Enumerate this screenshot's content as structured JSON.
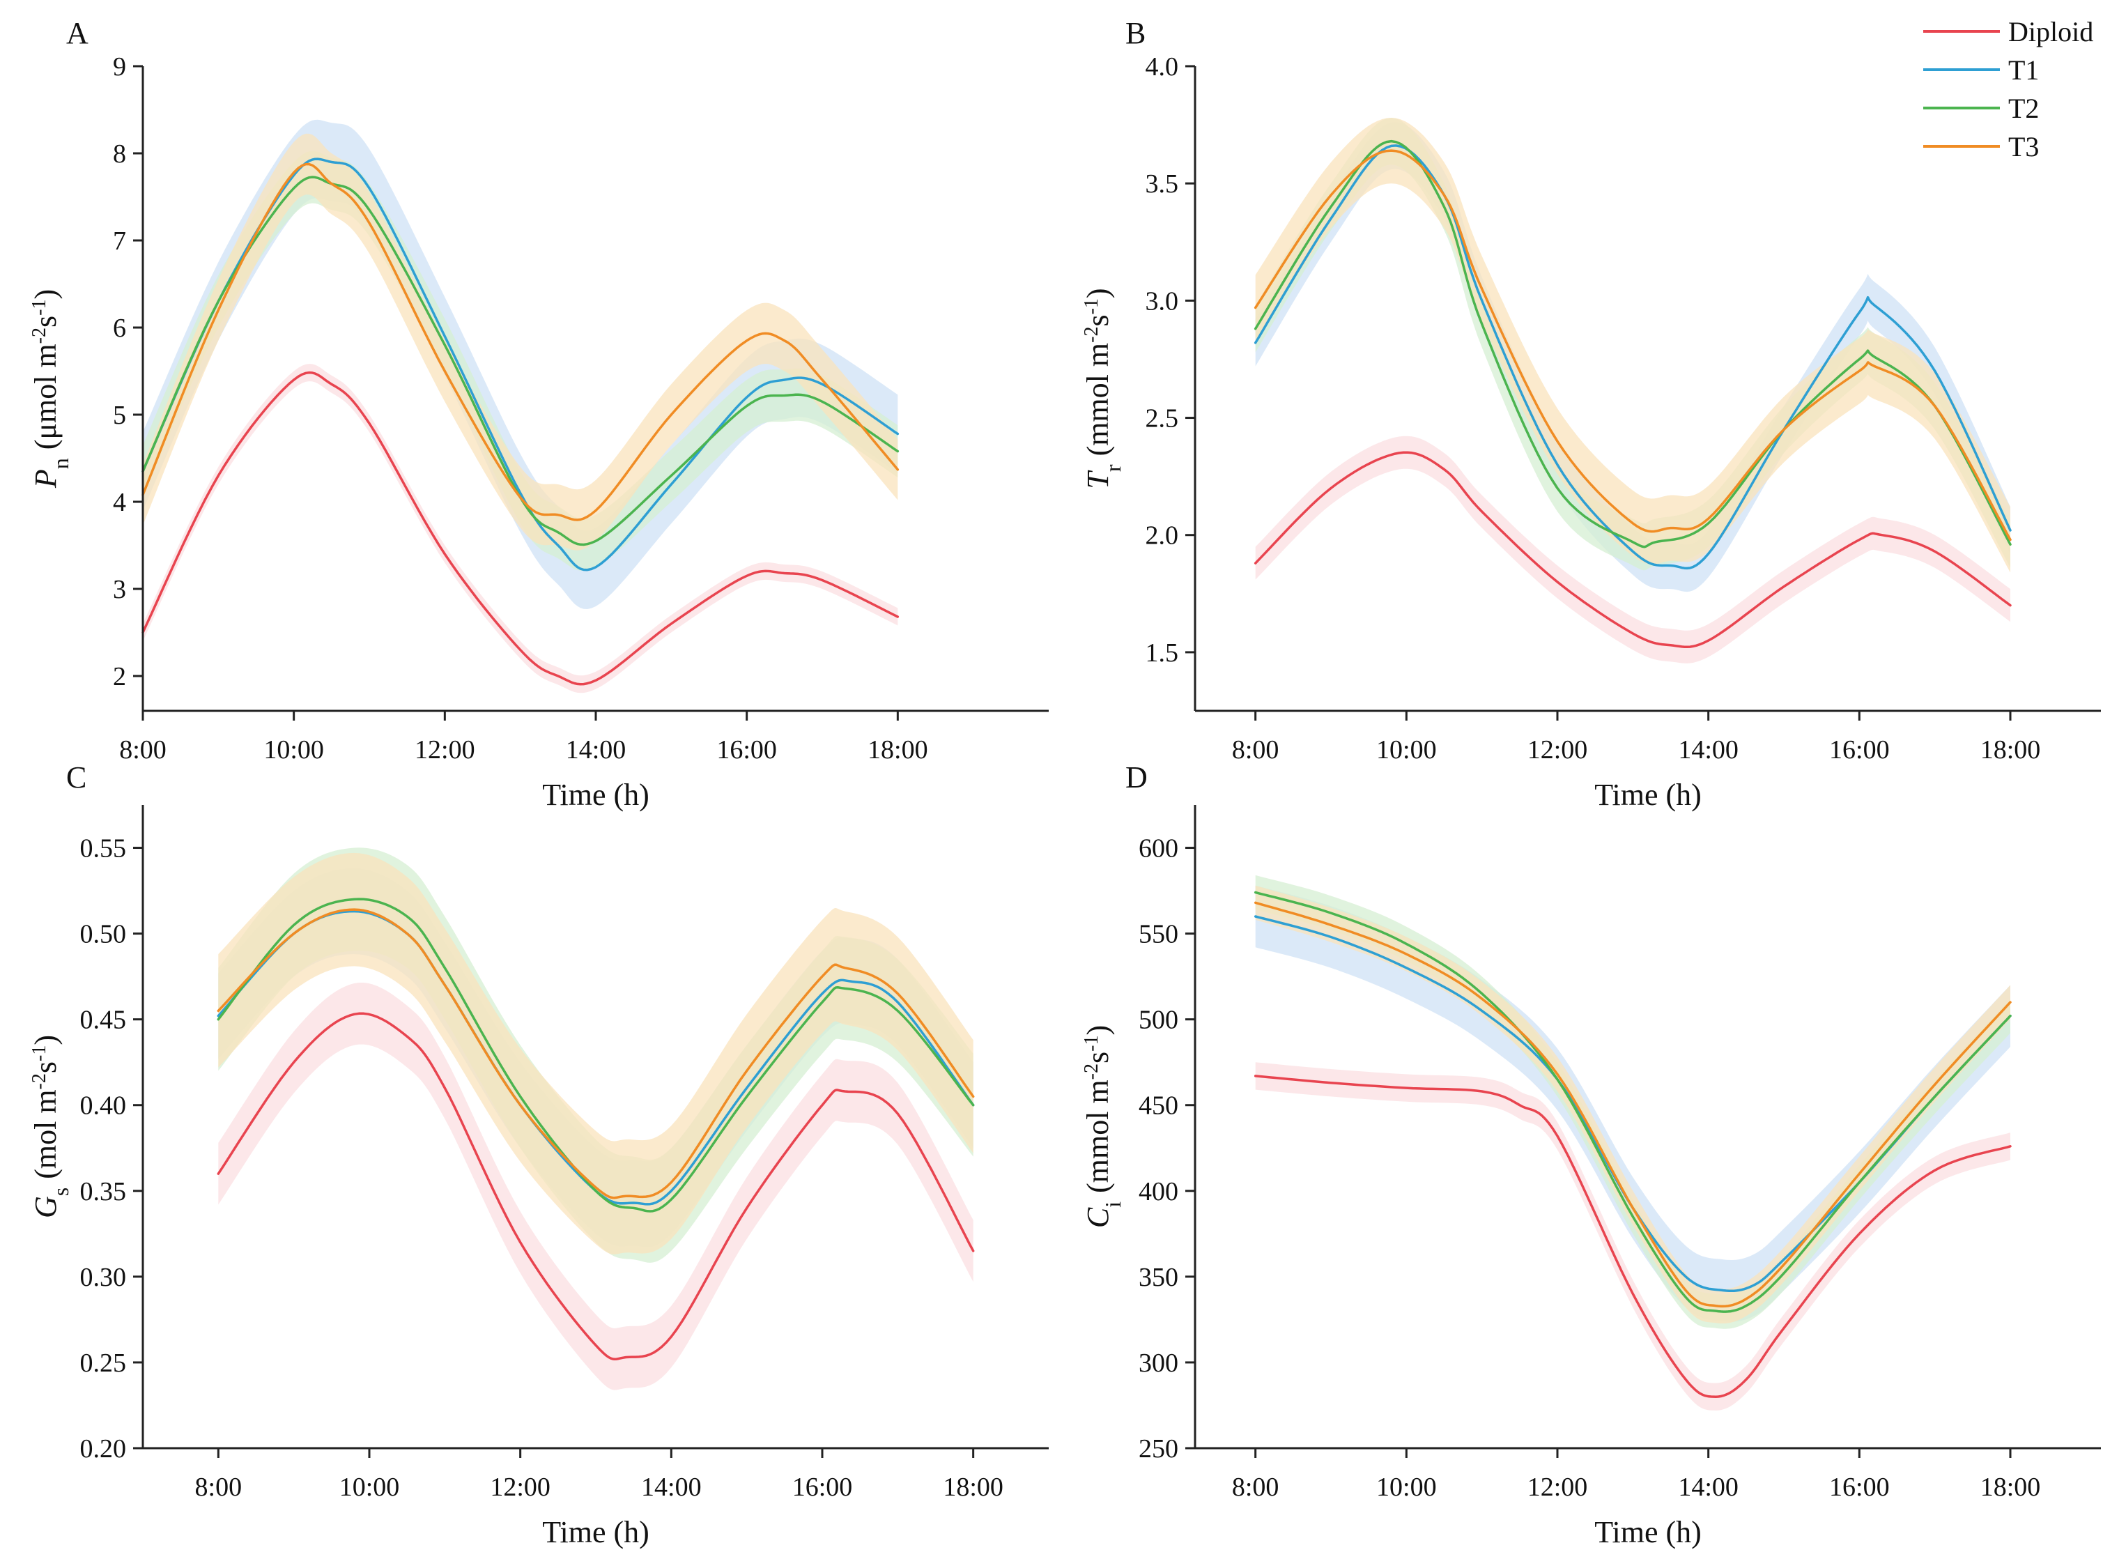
{
  "figure": {
    "legend": [
      {
        "name": "Diploid",
        "color": "#e8444f"
      },
      {
        "name": "T1",
        "color": "#2e9fd3"
      },
      {
        "name": "T2",
        "color": "#4bb44f"
      },
      {
        "name": "T3",
        "color": "#f08c24"
      }
    ],
    "band_colors": {
      "Diploid": "#fbdfe2",
      "T1": "#cfe2f5",
      "T2": "#d5efd3",
      "T3": "#f9e3bc"
    }
  },
  "chart_data": [
    {
      "type": "line",
      "panel": "A",
      "title": "",
      "xlabel": "Time (h)",
      "ylabel": {
        "symbol": "P",
        "sub": "n",
        "unit_prefix": "(μmol m",
        "exp1": "-2",
        "mid": "s",
        "exp2": "-1",
        "close": ")"
      },
      "xlim": [
        8,
        20
      ],
      "ylim": [
        1.6,
        9
      ],
      "x_ticks": [
        8,
        10,
        12,
        14,
        16,
        18
      ],
      "x_tick_labels": [
        "8:00",
        "10:00",
        "12:00",
        "14:00",
        "16:00",
        "18:00"
      ],
      "y_ticks": [
        2,
        3,
        4,
        5,
        6,
        7,
        8,
        9
      ],
      "y_tick_labels": [
        "2",
        "3",
        "4",
        "5",
        "6",
        "7",
        "8",
        "9"
      ],
      "series": [
        {
          "name": "Diploid",
          "x": [
            8,
            9,
            10,
            10.5,
            11,
            12,
            13,
            13.5,
            14,
            15,
            16,
            16.5,
            17,
            18
          ],
          "y": [
            2.5,
            4.3,
            5.4,
            5.35,
            4.9,
            3.4,
            2.3,
            2.0,
            1.95,
            2.6,
            3.15,
            3.18,
            3.1,
            2.68
          ],
          "err": 0.1
        },
        {
          "name": "T1",
          "x": [
            8,
            9,
            10,
            10.5,
            11,
            12,
            13,
            13.5,
            14,
            15,
            16,
            16.5,
            17,
            18
          ],
          "y": [
            4.35,
            6.3,
            7.75,
            7.9,
            7.6,
            5.9,
            4.1,
            3.5,
            3.25,
            4.2,
            5.2,
            5.4,
            5.35,
            4.78
          ],
          "err": 0.45
        },
        {
          "name": "T2",
          "x": [
            8,
            9,
            10,
            10.5,
            11,
            12,
            13,
            13.5,
            14,
            15,
            16,
            16.5,
            17,
            18
          ],
          "y": [
            4.35,
            6.3,
            7.6,
            7.65,
            7.35,
            5.8,
            4.05,
            3.65,
            3.55,
            4.3,
            5.1,
            5.22,
            5.15,
            4.58
          ],
          "err": 0.3
        },
        {
          "name": "T3",
          "x": [
            8,
            9,
            10,
            10.5,
            11,
            12,
            13,
            13.5,
            14,
            15,
            16,
            16.5,
            17,
            18
          ],
          "y": [
            4.08,
            6.2,
            7.78,
            7.65,
            7.2,
            5.5,
            4.05,
            3.85,
            3.9,
            5.0,
            5.85,
            5.85,
            5.4,
            4.37
          ],
          "err": 0.35
        }
      ]
    },
    {
      "type": "line",
      "panel": "B",
      "title": "",
      "xlabel": "Time (h)",
      "ylabel": {
        "symbol": "T",
        "sub": "r",
        "unit_prefix": "(mmol m",
        "exp1": "-2",
        "mid": "s",
        "exp2": "-1",
        "close": ")"
      },
      "xlim": [
        7.2,
        19.2
      ],
      "ylim": [
        1.25,
        4.0
      ],
      "x_ticks": [
        8,
        10,
        12,
        14,
        16,
        18
      ],
      "x_tick_labels": [
        "8:00",
        "10:00",
        "12:00",
        "14:00",
        "16:00",
        "18:00"
      ],
      "y_ticks": [
        1.5,
        2.0,
        2.5,
        3.0,
        3.5,
        4.0
      ],
      "y_tick_labels": [
        "1.5",
        "2.0",
        "2.5",
        "3.0",
        "3.5",
        "4.0"
      ],
      "series": [
        {
          "name": "Diploid",
          "x": [
            8,
            9,
            9.9,
            10.5,
            11,
            12,
            13,
            13.5,
            14,
            15,
            16,
            16.3,
            17,
            18
          ],
          "y": [
            1.88,
            2.2,
            2.35,
            2.28,
            2.1,
            1.8,
            1.58,
            1.53,
            1.55,
            1.78,
            1.98,
            2.0,
            1.93,
            1.7
          ],
          "err": 0.07
        },
        {
          "name": "T1",
          "x": [
            8,
            9,
            9.8,
            10.5,
            11,
            12,
            13,
            13.5,
            14,
            15,
            16,
            16.2,
            17,
            18
          ],
          "y": [
            2.82,
            3.35,
            3.66,
            3.45,
            3.0,
            2.3,
            1.93,
            1.87,
            1.92,
            2.45,
            2.95,
            2.98,
            2.7,
            2.02
          ],
          "err": 0.1
        },
        {
          "name": "T2",
          "x": [
            8,
            9,
            9.8,
            10.5,
            11,
            12,
            13,
            13.3,
            14,
            15,
            16,
            16.2,
            17,
            18
          ],
          "y": [
            2.88,
            3.4,
            3.68,
            3.4,
            2.9,
            2.2,
            1.97,
            1.97,
            2.05,
            2.45,
            2.75,
            2.76,
            2.55,
            1.96
          ],
          "err": 0.1
        },
        {
          "name": "T3",
          "x": [
            8,
            9,
            9.8,
            10.5,
            11,
            12,
            13,
            13.5,
            14,
            15,
            16,
            16.2,
            17,
            18
          ],
          "y": [
            2.97,
            3.45,
            3.64,
            3.45,
            3.05,
            2.4,
            2.05,
            2.03,
            2.07,
            2.45,
            2.7,
            2.72,
            2.55,
            1.98
          ],
          "err": 0.14
        }
      ]
    },
    {
      "type": "line",
      "panel": "C",
      "title": "",
      "xlabel": "Time (h)",
      "ylabel": {
        "symbol": "G",
        "sub": "s",
        "unit_prefix": "(mol m",
        "exp1": "-2",
        "mid": "s",
        "exp2": "-1",
        "close": ")"
      },
      "xlim": [
        7,
        19
      ],
      "ylim": [
        0.2,
        0.575
      ],
      "x_ticks": [
        8,
        10,
        12,
        14,
        16,
        18
      ],
      "x_tick_labels": [
        "8:00",
        "10:00",
        "12:00",
        "14:00",
        "16:00",
        "18:00"
      ],
      "y_ticks": [
        0.2,
        0.25,
        0.3,
        0.35,
        0.4,
        0.45,
        0.5,
        0.55
      ],
      "y_tick_labels": [
        "0.20",
        "0.25",
        "0.30",
        "0.35",
        "0.40",
        "0.45",
        "0.50",
        "0.55"
      ],
      "series": [
        {
          "name": "Diploid",
          "x": [
            8,
            9,
            9.8,
            10.5,
            11,
            12,
            13,
            13.4,
            14,
            15,
            16,
            16.3,
            17,
            18
          ],
          "y": [
            0.36,
            0.425,
            0.453,
            0.44,
            0.41,
            0.32,
            0.26,
            0.253,
            0.265,
            0.34,
            0.4,
            0.408,
            0.395,
            0.315
          ],
          "err": 0.018
        },
        {
          "name": "T1",
          "x": [
            8,
            9,
            9.8,
            10.5,
            11,
            12,
            13,
            13.5,
            14,
            15,
            16,
            16.4,
            17,
            18
          ],
          "y": [
            0.452,
            0.5,
            0.513,
            0.5,
            0.47,
            0.4,
            0.35,
            0.343,
            0.35,
            0.41,
            0.465,
            0.472,
            0.46,
            0.4
          ],
          "err": 0.025
        },
        {
          "name": "T2",
          "x": [
            8,
            9,
            9.8,
            10.5,
            11,
            12,
            13,
            13.5,
            14,
            15,
            16,
            16.3,
            17,
            18
          ],
          "y": [
            0.45,
            0.505,
            0.52,
            0.51,
            0.48,
            0.405,
            0.35,
            0.34,
            0.345,
            0.405,
            0.46,
            0.468,
            0.455,
            0.4
          ],
          "err": 0.03
        },
        {
          "name": "T3",
          "x": [
            8,
            9,
            9.8,
            10.5,
            11,
            12,
            13,
            13.4,
            14,
            15,
            16,
            16.3,
            17,
            18
          ],
          "y": [
            0.455,
            0.5,
            0.514,
            0.5,
            0.47,
            0.4,
            0.352,
            0.347,
            0.355,
            0.42,
            0.475,
            0.48,
            0.465,
            0.405
          ],
          "err": 0.033
        }
      ]
    },
    {
      "type": "line",
      "panel": "D",
      "title": "",
      "xlabel": "Time (h)",
      "ylabel": {
        "symbol": "C",
        "sub": "i",
        "unit_prefix": "(mmol m",
        "exp1": "-2",
        "mid": "s",
        "exp2": "-1",
        "close": ")"
      },
      "xlim": [
        7.2,
        19.2
      ],
      "ylim": [
        250,
        625
      ],
      "x_ticks": [
        8,
        10,
        12,
        14,
        16,
        18
      ],
      "x_tick_labels": [
        "8:00",
        "10:00",
        "12:00",
        "14:00",
        "16:00",
        "18:00"
      ],
      "y_ticks": [
        250,
        300,
        350,
        400,
        450,
        500,
        550,
        600
      ],
      "y_tick_labels": [
        "250",
        "300",
        "350",
        "400",
        "450",
        "500",
        "550",
        "600"
      ],
      "series": [
        {
          "name": "Diploid",
          "x": [
            8,
            9,
            10,
            11,
            11.5,
            12,
            13,
            13.7,
            14.1,
            14.5,
            15,
            16,
            17,
            18
          ],
          "y": [
            467,
            463,
            460,
            458,
            450,
            432,
            340,
            290,
            280,
            290,
            320,
            375,
            412,
            426
          ],
          "err": 8
        },
        {
          "name": "T1",
          "x": [
            8,
            9,
            10,
            11,
            12,
            13,
            13.7,
            14.2,
            14.6,
            15,
            16,
            17,
            18
          ],
          "y": [
            560,
            548,
            530,
            505,
            465,
            390,
            350,
            342,
            345,
            360,
            405,
            455,
            502
          ],
          "err": 18
        },
        {
          "name": "T2",
          "x": [
            8,
            9,
            10,
            11,
            12,
            13,
            13.7,
            14.1,
            14.5,
            15,
            16,
            17,
            18
          ],
          "y": [
            574,
            562,
            544,
            515,
            465,
            385,
            338,
            330,
            333,
            352,
            405,
            455,
            502
          ],
          "err": 10
        },
        {
          "name": "T3",
          "x": [
            8,
            9,
            10,
            11,
            12,
            13,
            13.7,
            14.1,
            14.5,
            15,
            16,
            17,
            18
          ],
          "y": [
            568,
            555,
            538,
            512,
            468,
            390,
            342,
            333,
            337,
            357,
            410,
            462,
            510
          ],
          "err": 10
        }
      ]
    }
  ]
}
